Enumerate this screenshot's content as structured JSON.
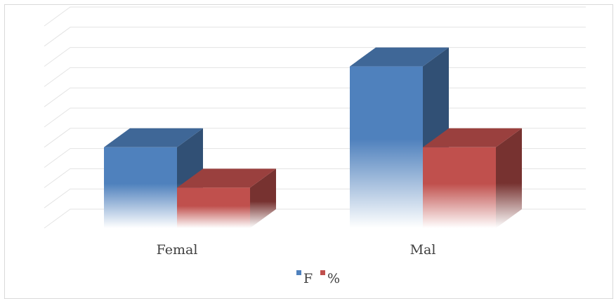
{
  "chart_data": {
    "type": "bar",
    "style": "3d-clustered-column",
    "categories": [
      "Femal",
      "Mal"
    ],
    "series": [
      {
        "name": "F",
        "color": "#4F81BD",
        "values": [
          4,
          8
        ]
      },
      {
        "name": "%",
        "color": "#C0504D",
        "values": [
          2,
          4
        ]
      }
    ],
    "ylim": [
      0,
      10
    ],
    "grid": true,
    "legend": "bottom"
  }
}
